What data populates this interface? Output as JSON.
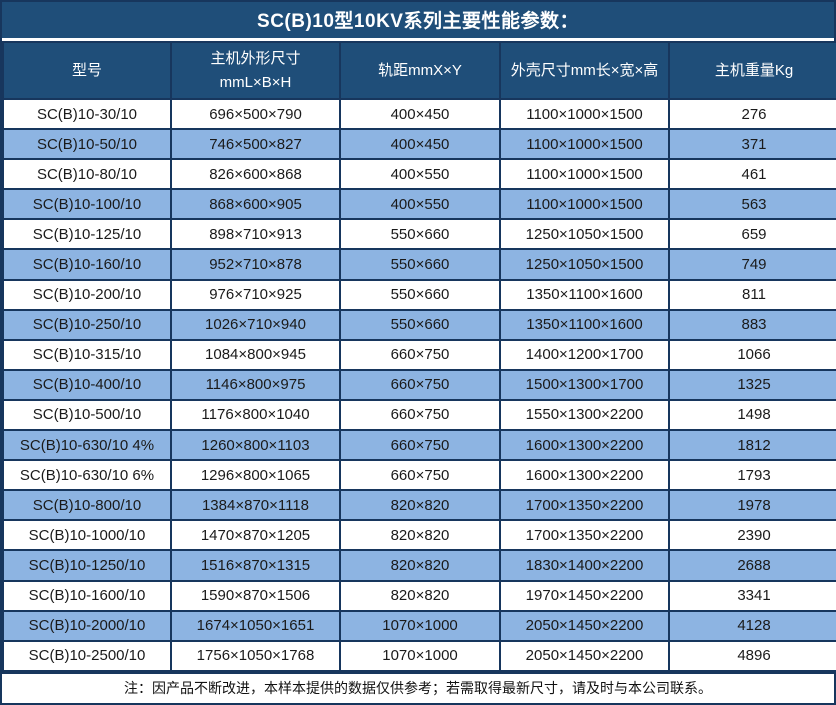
{
  "title": "SC(B)10型10KV系列主要性能参数：",
  "colors": {
    "header_bg": "#1F4E79",
    "row_alt_bg": "#8DB4E2",
    "row_bg": "#FFFFFF",
    "border": "#17365D",
    "header_text": "#FFFFFF",
    "cell_text": "#1A1A1A"
  },
  "table": {
    "columns": [
      {
        "label": "型号"
      },
      {
        "label": "主机外形尺寸\nmmL×B×H"
      },
      {
        "label": "轨距mmX×Y"
      },
      {
        "label": "外壳尺寸mm长×宽×高"
      },
      {
        "label": "主机重量Kg"
      }
    ],
    "rows": [
      [
        "SC(B)10-30/10",
        "696×500×790",
        "400×450",
        "1100×1000×1500",
        "276"
      ],
      [
        "SC(B)10-50/10",
        "746×500×827",
        "400×450",
        "1100×1000×1500",
        "371"
      ],
      [
        "SC(B)10-80/10",
        "826×600×868",
        "400×550",
        "1100×1000×1500",
        "461"
      ],
      [
        "SC(B)10-100/10",
        "868×600×905",
        "400×550",
        "1100×1000×1500",
        "563"
      ],
      [
        "SC(B)10-125/10",
        "898×710×913",
        "550×660",
        "1250×1050×1500",
        "659"
      ],
      [
        "SC(B)10-160/10",
        "952×710×878",
        "550×660",
        "1250×1050×1500",
        "749"
      ],
      [
        "SC(B)10-200/10",
        "976×710×925",
        "550×660",
        "1350×1100×1600",
        "811"
      ],
      [
        "SC(B)10-250/10",
        "1026×710×940",
        "550×660",
        "1350×1100×1600",
        "883"
      ],
      [
        "SC(B)10-315/10",
        "1084×800×945",
        "660×750",
        "1400×1200×1700",
        "1066"
      ],
      [
        "SC(B)10-400/10",
        "1146×800×975",
        "660×750",
        "1500×1300×1700",
        "1325"
      ],
      [
        "SC(B)10-500/10",
        "1176×800×1040",
        "660×750",
        "1550×1300×2200",
        "1498"
      ],
      [
        "SC(B)10-630/10 4%",
        "1260×800×1103",
        "660×750",
        "1600×1300×2200",
        "1812"
      ],
      [
        "SC(B)10-630/10 6%",
        "1296×800×1065",
        "660×750",
        "1600×1300×2200",
        "1793"
      ],
      [
        "SC(B)10-800/10",
        "1384×870×1118",
        "820×820",
        "1700×1350×2200",
        "1978"
      ],
      [
        "SC(B)10-1000/10",
        "1470×870×1205",
        "820×820",
        "1700×1350×2200",
        "2390"
      ],
      [
        "SC(B)10-1250/10",
        "1516×870×1315",
        "820×820",
        "1830×1400×2200",
        "2688"
      ],
      [
        "SC(B)10-1600/10",
        "1590×870×1506",
        "820×820",
        "1970×1450×2200",
        "3341"
      ],
      [
        "SC(B)10-2000/10",
        "1674×1050×1651",
        "1070×1000",
        "2050×1450×2200",
        "4128"
      ],
      [
        "SC(B)10-2500/10",
        "1756×1050×1768",
        "1070×1000",
        "2050×1450×2200",
        "4896"
      ]
    ]
  },
  "footer_note": "注：因产品不断改进，本样本提供的数据仅供参考；若需取得最新尺寸，请及时与本公司联系。"
}
